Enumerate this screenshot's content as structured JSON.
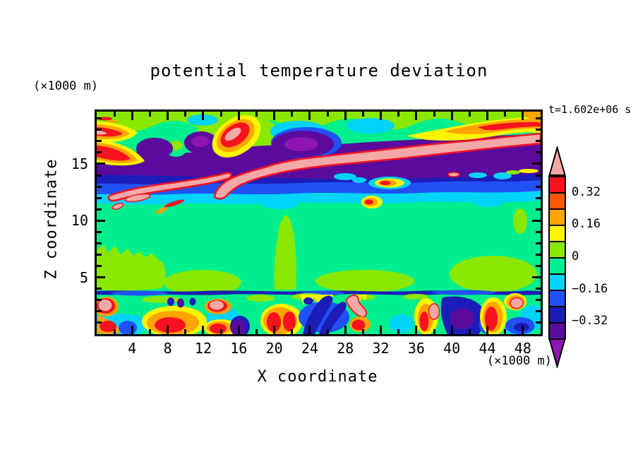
{
  "title": "potential temperature deviation",
  "annotations": {
    "time_label": "t=1.602e+06 s",
    "y_unit_label": "(×1000 m)",
    "x_unit_label": "(×1000 m)"
  },
  "x_axis": {
    "label": "X coordinate",
    "units": "×1000 m",
    "min": 0,
    "max": 50,
    "major_ticks": [
      4,
      8,
      12,
      16,
      20,
      24,
      28,
      32,
      36,
      40,
      44,
      48
    ],
    "minor_tick_interval": 2
  },
  "y_axis": {
    "label": "Z coordinate",
    "units": "×1000 m",
    "min": 0,
    "max": 19.6,
    "major_ticks": [
      5,
      10,
      15
    ],
    "minor_tick_interval": 1
  },
  "palette": {
    "pink": "#F5A8A8",
    "red": "#F81220",
    "orangered": "#FF5800",
    "orange": "#FFA400",
    "yellow": "#FFF400",
    "chartreuse": "#8AE800",
    "green": "#00EF8E",
    "cyan": "#00D3F8",
    "blue": "#2051F5",
    "navy": "#1C1CB8",
    "indigo": "#5A0B9E",
    "purple": "#8E14B4"
  },
  "colorbar": {
    "box_colors": [
      "red",
      "orangered",
      "orange",
      "yellow",
      "chartreuse",
      "green",
      "cyan",
      "blue",
      "navy",
      "indigo"
    ],
    "top_arrow": "pink",
    "bottom_arrow": "purple",
    "labels": [
      {
        "text": "0.32",
        "boundary": 1
      },
      {
        "text": "0.16",
        "boundary": 3
      },
      {
        "text": "0",
        "boundary": 5
      },
      {
        "text": "−0.16",
        "boundary": 7
      },
      {
        "text": "−0.32",
        "boundary": 9
      }
    ]
  },
  "chart_data": {
    "type": "filled_contour",
    "title": "potential temperature deviation",
    "time": "t=1.602e+06 s",
    "x": {
      "label": "X coordinate",
      "units": "×1000 m",
      "min": 0,
      "max": 50
    },
    "y": {
      "label": "Z coordinate",
      "units": "×1000 m",
      "min": 0,
      "max": 19.6
    },
    "contour_interval": 0.08,
    "level_boundaries": [
      -0.4,
      -0.32,
      -0.24,
      -0.16,
      -0.08,
      0,
      0.08,
      0.16,
      0.24,
      0.32,
      0.4
    ],
    "labeled_levels": [
      0.32,
      0.16,
      0,
      -0.16,
      -0.32
    ],
    "color_scale_order_top_to_bottom": [
      "pink (>0.40)",
      "red",
      "orangered",
      "orange",
      "yellow",
      "chartreuse",
      "green",
      "cyan",
      "blue",
      "navy",
      "indigo",
      "purple (<-0.40)"
    ],
    "features": [
      "Elongated strong-positive band (>0.4, pink with red rim) sloping upward from about (x=5, z=13) to the right edge near z=16.5-18",
      "Secondary pink band on the left from about (x=1.5, z=12.5) to (x=15, z=13.5)",
      "Broad strong-negative layer (purple/indigo, < -0.32) between z=13.5 and z=15.5 across most of the domain",
      "Navy, blue and cyan negative layers stacked from z=11.5 to z=13.5 spanning the full width",
      "Row of deep-negative (indigo with violet cores) blobs near z=15-17.5 at x=5-8, 12-15 and 22-27",
      "Warm swirls (yellow/orange/red with pink cores) near the top at x=0-5, 13-19 and along the upper-right edge",
      "Cyan patches near the top at x=11-13, 21-24, 27-34 and 40-44",
      "Near-zero interior (greens, -0.08 to 0.08) from z=4 to z=11.5 with chartreuse patches",
      "Small isolated warm anomaly (yellow/orange/red) embedded in the cyan/navy layer near x=32, z=12.5-13",
      "Turbulent lowest layer z=0-3.7 separated by a thin navy/blue line at z=3.7, with alternating cells exceeding +/-0.4: pink blobs near x=0.5, 13.5, 28.5, 38, 47; red/orange columns near x=7-11, 19-22, 36-38, 44-45; navy/indigo masses near x=23-27 and 39-43; cyan pools between"
    ]
  }
}
